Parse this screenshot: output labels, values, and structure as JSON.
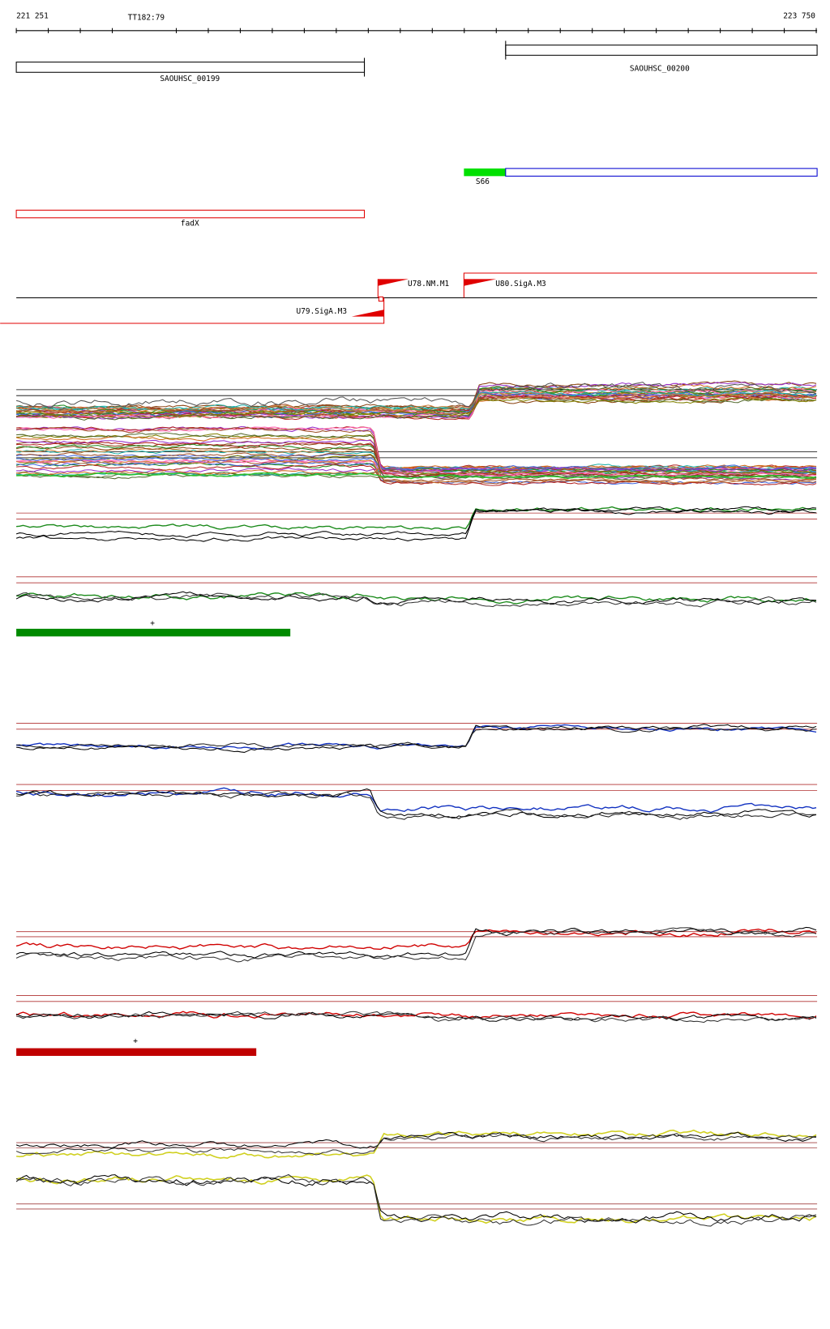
{
  "ruler": {
    "start": "221 251",
    "marker": "TT182:79",
    "end": "223 750"
  },
  "genes": [
    {
      "label": "SAOUHSC_00199"
    },
    {
      "label": "SAOUHSC_00200"
    }
  ],
  "features": {
    "s66": "S66",
    "fadx": "fadX"
  },
  "promoters": [
    {
      "label": "U78.NM.M1"
    },
    {
      "label": "U80.SigA.M3"
    },
    {
      "label": "U79.SigA.M3"
    }
  ],
  "strand_marks": [
    "+",
    "+"
  ]
}
